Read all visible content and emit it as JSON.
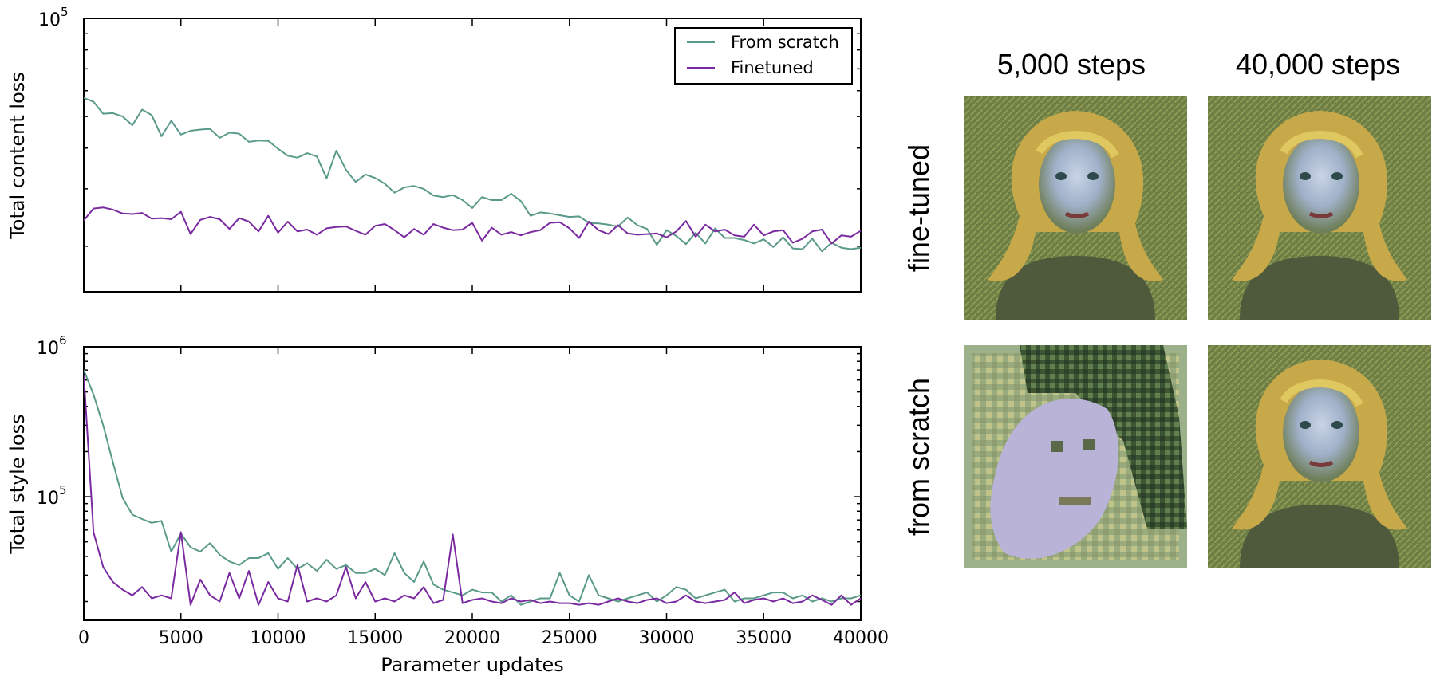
{
  "chart_data": [
    {
      "type": "line",
      "ylabel": "Total content loss",
      "xlabel": "",
      "yscale": "log",
      "ylim": [
        14500,
        100000
      ],
      "xlim": [
        0,
        40000
      ],
      "y_top_tick": {
        "base": "10",
        "exp": "5"
      },
      "legend": {
        "placement": "top-right",
        "entries": [
          "From scratch",
          "Finetuned"
        ]
      },
      "series": [
        {
          "name": "From scratch",
          "color": "#5a9a8a",
          "x": [
            0,
            500,
            1000,
            1500,
            2000,
            2500,
            3000,
            3500,
            4000,
            4500,
            5000,
            5500,
            6000,
            6500,
            7000,
            7500,
            8000,
            8500,
            9000,
            9500,
            10000,
            10500,
            11000,
            11500,
            12000,
            12500,
            13000,
            13500,
            14000,
            14500,
            15000,
            15500,
            16000,
            16500,
            17000,
            17500,
            18000,
            18500,
            19000,
            19500,
            20000,
            20500,
            21000,
            21500,
            22000,
            22500,
            23000,
            23500,
            24000,
            24500,
            25000,
            25500,
            26000,
            26500,
            27000,
            27500,
            28000,
            28500,
            29000,
            29500,
            30000,
            30500,
            31000,
            31500,
            32000,
            32500,
            33000,
            33500,
            34000,
            34500,
            35000,
            35500,
            36000,
            36500,
            37000,
            37500,
            38000,
            38500,
            39000,
            39500,
            40000
          ],
          "values": [
            57000,
            55500,
            51000,
            51200,
            50000,
            47000,
            52500,
            50500,
            43500,
            48500,
            44000,
            45200,
            45600,
            45800,
            43000,
            44600,
            44300,
            41800,
            42200,
            42100,
            39800,
            37900,
            37400,
            38600,
            37700,
            32300,
            39300,
            34300,
            31500,
            33200,
            32400,
            31100,
            29200,
            30300,
            30600,
            30000,
            28600,
            28300,
            28700,
            27700,
            26200,
            28300,
            27700,
            27700,
            29000,
            27500,
            24800,
            25400,
            25200,
            24900,
            24600,
            24700,
            23600,
            23500,
            23300,
            23000,
            24500,
            23200,
            22600,
            20200,
            22400,
            21500,
            20300,
            22000,
            20400,
            22700,
            21200,
            21200,
            20900,
            20400,
            21000,
            19900,
            21300,
            19700,
            19600,
            21100,
            19300,
            20500,
            19800,
            19600,
            19800
          ]
        },
        {
          "name": "Finetuned",
          "color": "#7a2aa0",
          "x": [
            0,
            500,
            1000,
            1500,
            2000,
            2500,
            3000,
            3500,
            4000,
            4500,
            5000,
            5500,
            6000,
            6500,
            7000,
            7500,
            8000,
            8500,
            9000,
            9500,
            10000,
            10500,
            11000,
            11500,
            12000,
            12500,
            13000,
            13500,
            14000,
            14500,
            15000,
            15500,
            16000,
            16500,
            17000,
            17500,
            18000,
            18500,
            19000,
            19500,
            20000,
            20500,
            21000,
            21500,
            22000,
            22500,
            23000,
            23500,
            24000,
            24500,
            25000,
            25500,
            26000,
            26500,
            27000,
            27500,
            28000,
            28500,
            29000,
            29500,
            30000,
            30500,
            31000,
            31500,
            32000,
            32500,
            33000,
            33500,
            34000,
            34500,
            35000,
            35500,
            36000,
            36500,
            37000,
            37500,
            38000,
            38500,
            39000,
            39500,
            40000
          ],
          "values": [
            24000,
            26100,
            26300,
            25900,
            25200,
            25100,
            25300,
            24300,
            24400,
            24200,
            25500,
            21800,
            24100,
            24600,
            24200,
            22600,
            24400,
            23800,
            22200,
            24800,
            22000,
            23800,
            22200,
            22500,
            21700,
            22700,
            22900,
            23000,
            22300,
            21700,
            23100,
            23400,
            22400,
            21300,
            22600,
            21700,
            23400,
            22800,
            22400,
            22500,
            23600,
            20800,
            22800,
            21700,
            22100,
            21600,
            22100,
            22400,
            23600,
            23700,
            22700,
            21200,
            23800,
            22400,
            21800,
            23200,
            21900,
            21700,
            21800,
            21900,
            21300,
            22200,
            23900,
            21400,
            23300,
            22200,
            22500,
            21600,
            21400,
            23300,
            21600,
            22200,
            22400,
            20500,
            21100,
            22200,
            22500,
            20400,
            21600,
            21400,
            22300
          ]
        }
      ]
    },
    {
      "type": "line",
      "ylabel": "Total style loss",
      "xlabel": "Parameter updates",
      "yscale": "log",
      "ylim": [
        15000,
        1000000
      ],
      "xlim": [
        0,
        40000
      ],
      "y_tick_labels": [
        {
          "base": "10",
          "exp": "6"
        },
        {
          "base": "10",
          "exp": "5"
        }
      ],
      "x_ticks": [
        0,
        5000,
        10000,
        15000,
        20000,
        25000,
        30000,
        35000,
        40000
      ],
      "x_tick_labels": [
        "0",
        "5000",
        "10000",
        "15000",
        "20000",
        "25000",
        "30000",
        "35000",
        "40000"
      ],
      "series": [
        {
          "name": "From scratch",
          "color": "#5a9a8a",
          "x": [
            0,
            500,
            1000,
            1500,
            2000,
            2500,
            3000,
            3500,
            4000,
            4500,
            5000,
            5500,
            6000,
            6500,
            7000,
            7500,
            8000,
            8500,
            9000,
            9500,
            10000,
            10500,
            11000,
            11500,
            12000,
            12500,
            13000,
            13500,
            14000,
            14500,
            15000,
            15500,
            16000,
            16500,
            17000,
            17500,
            18000,
            18500,
            19000,
            19500,
            20000,
            20500,
            21000,
            21500,
            22000,
            22500,
            23000,
            23500,
            24000,
            24500,
            25000,
            25500,
            26000,
            26500,
            27000,
            27500,
            28000,
            28500,
            29000,
            29500,
            30000,
            30500,
            31000,
            31500,
            32000,
            32500,
            33000,
            33500,
            34000,
            34500,
            35000,
            35500,
            36000,
            36500,
            37000,
            37500,
            38000,
            38500,
            39000,
            39500,
            40000
          ],
          "values": [
            700000,
            480000,
            300000,
            170000,
            98000,
            76000,
            71000,
            67000,
            69000,
            43000,
            57000,
            46000,
            43000,
            49000,
            41000,
            37000,
            35000,
            39000,
            39000,
            42000,
            33000,
            39000,
            33000,
            36000,
            32000,
            38000,
            33000,
            35000,
            31000,
            31000,
            33000,
            30000,
            42000,
            31000,
            27000,
            37000,
            26000,
            24000,
            23000,
            22000,
            24000,
            23000,
            23000,
            20000,
            22000,
            19000,
            20000,
            21000,
            21000,
            31000,
            22000,
            20000,
            30000,
            22000,
            21000,
            20000,
            21000,
            22000,
            23000,
            20000,
            22000,
            25000,
            24000,
            21000,
            22000,
            23000,
            24000,
            20000,
            21000,
            21000,
            22000,
            23000,
            23000,
            21000,
            22000,
            20000,
            21000,
            20000,
            21000,
            21000,
            22000
          ]
        },
        {
          "name": "Finetuned",
          "color": "#7a2aa0",
          "x": [
            0,
            500,
            1000,
            1500,
            2000,
            2500,
            3000,
            3500,
            4000,
            4500,
            5000,
            5500,
            6000,
            6500,
            7000,
            7500,
            8000,
            8500,
            9000,
            9500,
            10000,
            10500,
            11000,
            11500,
            12000,
            12500,
            13000,
            13500,
            14000,
            14500,
            15000,
            15500,
            16000,
            16500,
            17000,
            17500,
            18000,
            18500,
            19000,
            19500,
            20000,
            20500,
            21000,
            21500,
            22000,
            22500,
            23000,
            23500,
            24000,
            24500,
            25000,
            25500,
            26000,
            26500,
            27000,
            27500,
            28000,
            28500,
            29000,
            29500,
            30000,
            30500,
            31000,
            31500,
            32000,
            32500,
            33000,
            33500,
            34000,
            34500,
            35000,
            35500,
            36000,
            36500,
            37000,
            37500,
            38000,
            38500,
            39000,
            39500,
            40000
          ],
          "values": [
            650000,
            58000,
            34000,
            27000,
            24000,
            22000,
            25000,
            21000,
            22000,
            21000,
            58000,
            19000,
            28000,
            22000,
            20000,
            31000,
            21000,
            32000,
            19000,
            27000,
            21000,
            20000,
            35000,
            20000,
            21000,
            20000,
            22000,
            34000,
            21000,
            27000,
            20000,
            21000,
            20000,
            22000,
            21000,
            25000,
            19500,
            20500,
            56000,
            19500,
            20500,
            21000,
            20000,
            19500,
            21000,
            20000,
            20500,
            19500,
            20000,
            19500,
            19500,
            19000,
            19500,
            19000,
            20000,
            21000,
            20000,
            19500,
            20500,
            21000,
            19500,
            20000,
            22000,
            20000,
            19500,
            20000,
            20500,
            23000,
            19500,
            20500,
            21000,
            20000,
            21000,
            19500,
            20000,
            22000,
            20500,
            19000,
            22000,
            19000,
            21000
          ]
        }
      ]
    }
  ],
  "panels": {
    "col_headers": [
      "5,000 steps",
      "40,000 steps"
    ],
    "row_headers": [
      "fine-tuned",
      "from scratch"
    ],
    "images": [
      {
        "row": "fine-tuned",
        "col": "5,000 steps"
      },
      {
        "row": "fine-tuned",
        "col": "40,000 steps"
      },
      {
        "row": "from scratch",
        "col": "5,000 steps"
      },
      {
        "row": "from scratch",
        "col": "40,000 steps"
      }
    ]
  }
}
